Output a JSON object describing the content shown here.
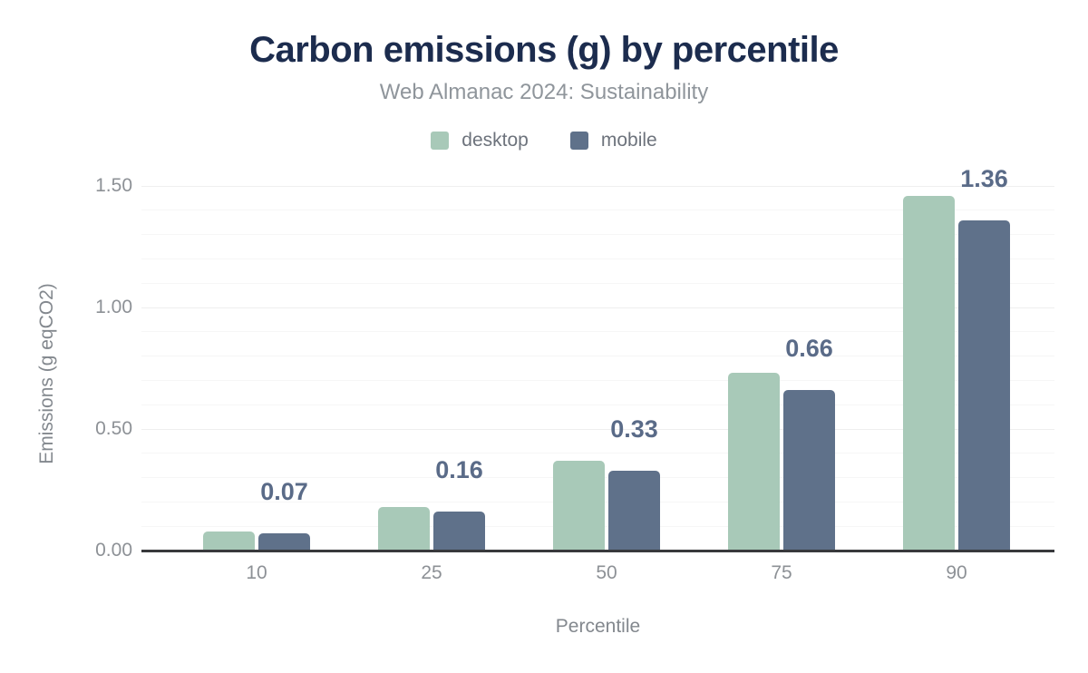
{
  "header": {
    "title": "Carbon emissions (g) by percentile",
    "subtitle": "Web Almanac 2024: Sustainability"
  },
  "colors": {
    "title": "#1c2c4e",
    "subtitle": "#8f959b",
    "desktop_series": "#a8c9b8",
    "mobile_series": "#5f718a",
    "value_label": "#5a6b88",
    "tick_text": "#8d9196",
    "axis_line": "#38393c",
    "grid_minor": "#f6f6f6",
    "grid_major": "#efefef"
  },
  "chart_data": {
    "type": "bar",
    "title": "Carbon emissions (g) by percentile",
    "subtitle": "Web Almanac 2024: Sustainability",
    "categories": [
      "10",
      "25",
      "50",
      "75",
      "90"
    ],
    "series": [
      {
        "name": "desktop",
        "color": "#a8c9b8",
        "values": [
          0.08,
          0.18,
          0.37,
          0.73,
          1.46
        ]
      },
      {
        "name": "mobile",
        "color": "#5f718a",
        "values": [
          0.07,
          0.16,
          0.33,
          0.66,
          1.36
        ]
      }
    ],
    "bar_labels": [
      "0.07",
      "0.16",
      "0.33",
      "0.66",
      "1.36"
    ],
    "bar_labels_series": "mobile",
    "xlabel": "Percentile",
    "ylabel": "Emissions (g eqCO2)",
    "ylim": [
      0,
      1.5
    ],
    "yticks": [
      {
        "value": 0.0,
        "label": "0.00"
      },
      {
        "value": 0.5,
        "label": "0.50"
      },
      {
        "value": 1.0,
        "label": "1.00"
      },
      {
        "value": 1.5,
        "label": "1.50"
      }
    ],
    "grid": {
      "minor_step": 0.1,
      "major_step": 0.5,
      "grid_on": true
    },
    "legend_position": "top"
  },
  "legend": [
    {
      "label": "desktop",
      "color": "#a8c9b8"
    },
    {
      "label": "mobile",
      "color": "#5f718a"
    }
  ]
}
